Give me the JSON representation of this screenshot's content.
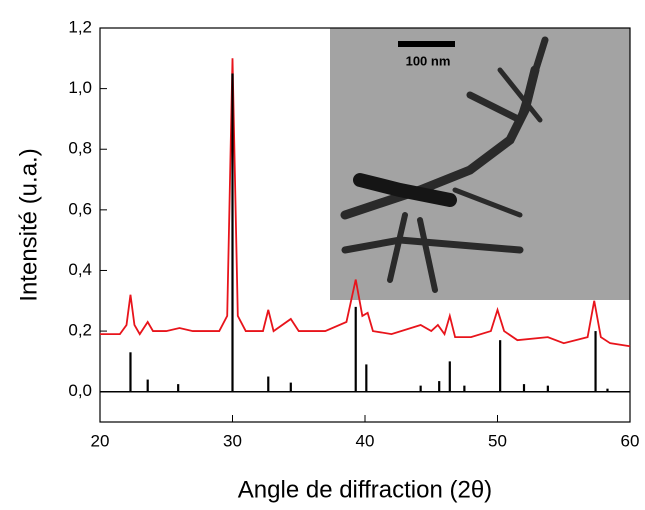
{
  "chart_data": {
    "type": "line",
    "xlabel": "Angle de diffraction (2θ)",
    "ylabel": "Intensité (u.a.)",
    "inset_scale_label": "100 nm",
    "xlim": [
      20,
      60
    ],
    "xticks": [
      20,
      30,
      40,
      50,
      60
    ],
    "ylim": [
      -0.1,
      1.2
    ],
    "yticks": [
      {
        "value": 0,
        "label": "0,0"
      },
      {
        "value": 0.2,
        "label": "0,2"
      },
      {
        "value": 0.4,
        "label": "0,4"
      },
      {
        "value": 0.6,
        "label": "0,6"
      },
      {
        "value": 0.8,
        "label": "0,8"
      },
      {
        "value": 1.0,
        "label": "1,0"
      },
      {
        "value": 1.2,
        "label": "1,2"
      }
    ],
    "series": [
      {
        "color": "#e8141b",
        "style": "line",
        "x": [
          20,
          21.5,
          22.0,
          22.3,
          22.6,
          23.0,
          23.6,
          24.0,
          25,
          26,
          27,
          29,
          29.6,
          30,
          30.4,
          31,
          32.3,
          32.7,
          33.1,
          34.4,
          35,
          37,
          38.6,
          39.3,
          39.8,
          40.2,
          40.6,
          42,
          44.2,
          45,
          45.5,
          46,
          46.4,
          46.8,
          48,
          49.5,
          50,
          50.5,
          51.5,
          53.8,
          55,
          56.8,
          57.3,
          57.8,
          58.5,
          60
        ],
        "values": [
          0.19,
          0.19,
          0.22,
          0.32,
          0.22,
          0.19,
          0.23,
          0.2,
          0.2,
          0.21,
          0.2,
          0.2,
          0.25,
          1.1,
          0.25,
          0.2,
          0.2,
          0.27,
          0.2,
          0.24,
          0.2,
          0.2,
          0.23,
          0.37,
          0.25,
          0.26,
          0.2,
          0.19,
          0.22,
          0.2,
          0.22,
          0.19,
          0.25,
          0.18,
          0.18,
          0.2,
          0.27,
          0.2,
          0.17,
          0.18,
          0.16,
          0.18,
          0.3,
          0.18,
          0.16,
          0.15
        ]
      },
      {
        "color": "#000000",
        "style": "stick",
        "x": [
          22.3,
          23.6,
          25.9,
          30.0,
          32.7,
          34.4,
          39.3,
          40.1,
          44.2,
          45.6,
          46.4,
          47.5,
          50.2,
          52.0,
          53.8,
          57.4,
          58.3
        ],
        "values": [
          0.13,
          0.04,
          0.025,
          1.05,
          0.05,
          0.03,
          0.28,
          0.09,
          0.02,
          0.035,
          0.1,
          0.02,
          0.17,
          0.025,
          0.02,
          0.2,
          0.01
        ]
      }
    ]
  }
}
